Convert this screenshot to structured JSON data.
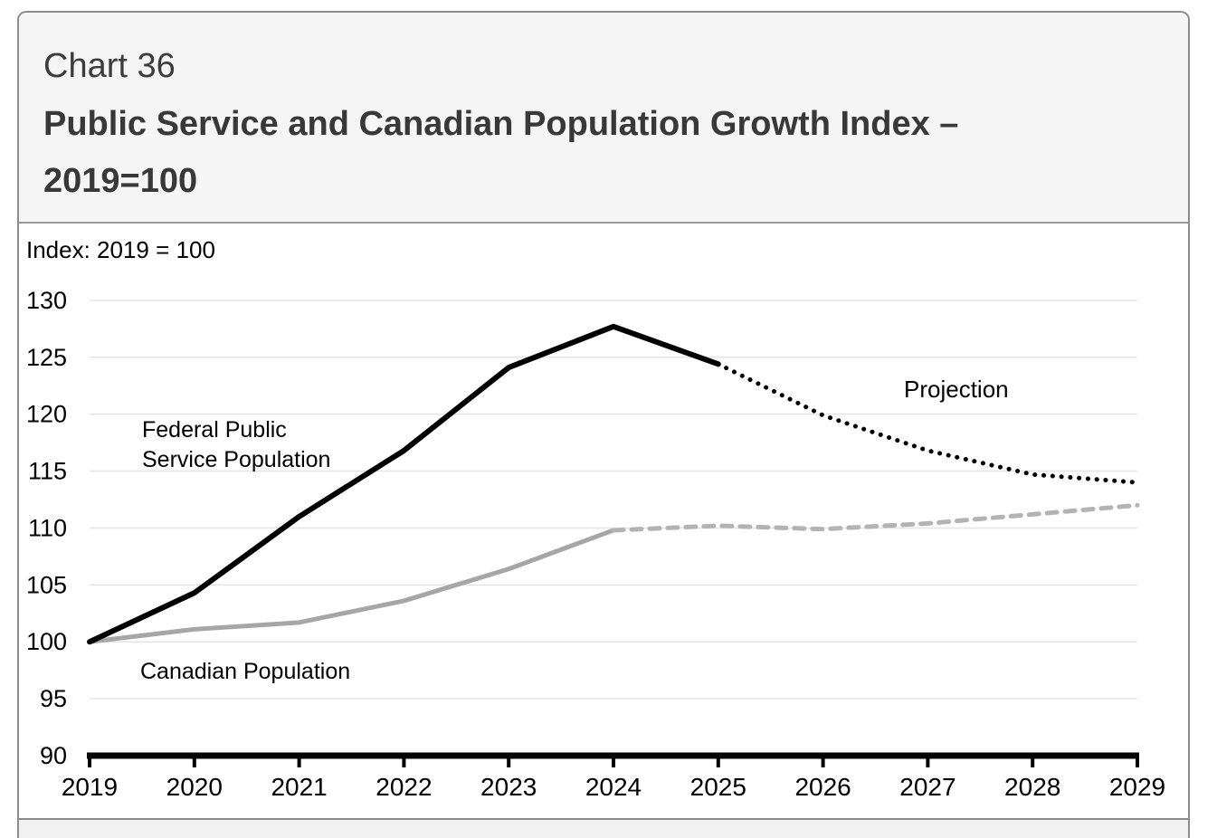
{
  "header": {
    "chart_number": "Chart 36",
    "title_line1": "Public Service and Canadian Population Growth Index –",
    "title_line2": "2019=100"
  },
  "chart": {
    "index_note": "Index: 2019 = 100",
    "annotations": {
      "fps_label_line1": "Federal Public",
      "fps_label_line2": "Service Population",
      "canadian_label": "Canadian Population",
      "projection_label": "Projection"
    }
  },
  "colors": {
    "black_series": "#000000",
    "gray_series": "#a6a6a6",
    "gray_projection_series": "#b3b3b3",
    "gridline": "#e4e4e4",
    "axis": "#000000",
    "header_bg": "#f5f5f5",
    "panel_border": "#8c8c8c",
    "title_text": "#383838",
    "footer_bg": "#f1f1f1"
  },
  "chart_data": {
    "type": "line",
    "title": "Public Service and Canadian Population Growth Index – 2019=100",
    "ylabel": "Index: 2019 = 100",
    "ylim": [
      90,
      130
    ],
    "ytick_step": 5,
    "x_ticks": [
      2019,
      2020,
      2021,
      2022,
      2023,
      2024,
      2025,
      2026,
      2027,
      2028,
      2029
    ],
    "grid": "horizontal",
    "legend_position": "none",
    "series": [
      {
        "name": "Canadian Population",
        "style": "solid",
        "color": "#a6a6a6",
        "width": 5,
        "x": [
          2019,
          2020,
          2021,
          2022,
          2023,
          2024
        ],
        "values": [
          100,
          101.1,
          101.7,
          103.6,
          106.4,
          109.8
        ]
      },
      {
        "name": "Canadian Population - Projection",
        "style": "dashed",
        "color": "#b3b3b3",
        "width": 5,
        "x": [
          2024,
          2025,
          2026,
          2027,
          2028,
          2029
        ],
        "values": [
          109.8,
          110.2,
          109.9,
          110.4,
          111.2,
          112.0
        ]
      },
      {
        "name": "Federal Public Service Population",
        "style": "solid",
        "color": "#000000",
        "width": 6,
        "x": [
          2019,
          2020,
          2021,
          2022,
          2023,
          2024,
          2025
        ],
        "values": [
          100,
          104.3,
          111.0,
          116.8,
          124.1,
          127.7,
          124.4
        ]
      },
      {
        "name": "Federal Public Service Population - Projection",
        "style": "dotted",
        "color": "#000000",
        "width": 5,
        "x": [
          2025,
          2026,
          2027,
          2028,
          2029
        ],
        "values": [
          124.4,
          119.9,
          116.8,
          114.7,
          114.0
        ]
      }
    ]
  }
}
